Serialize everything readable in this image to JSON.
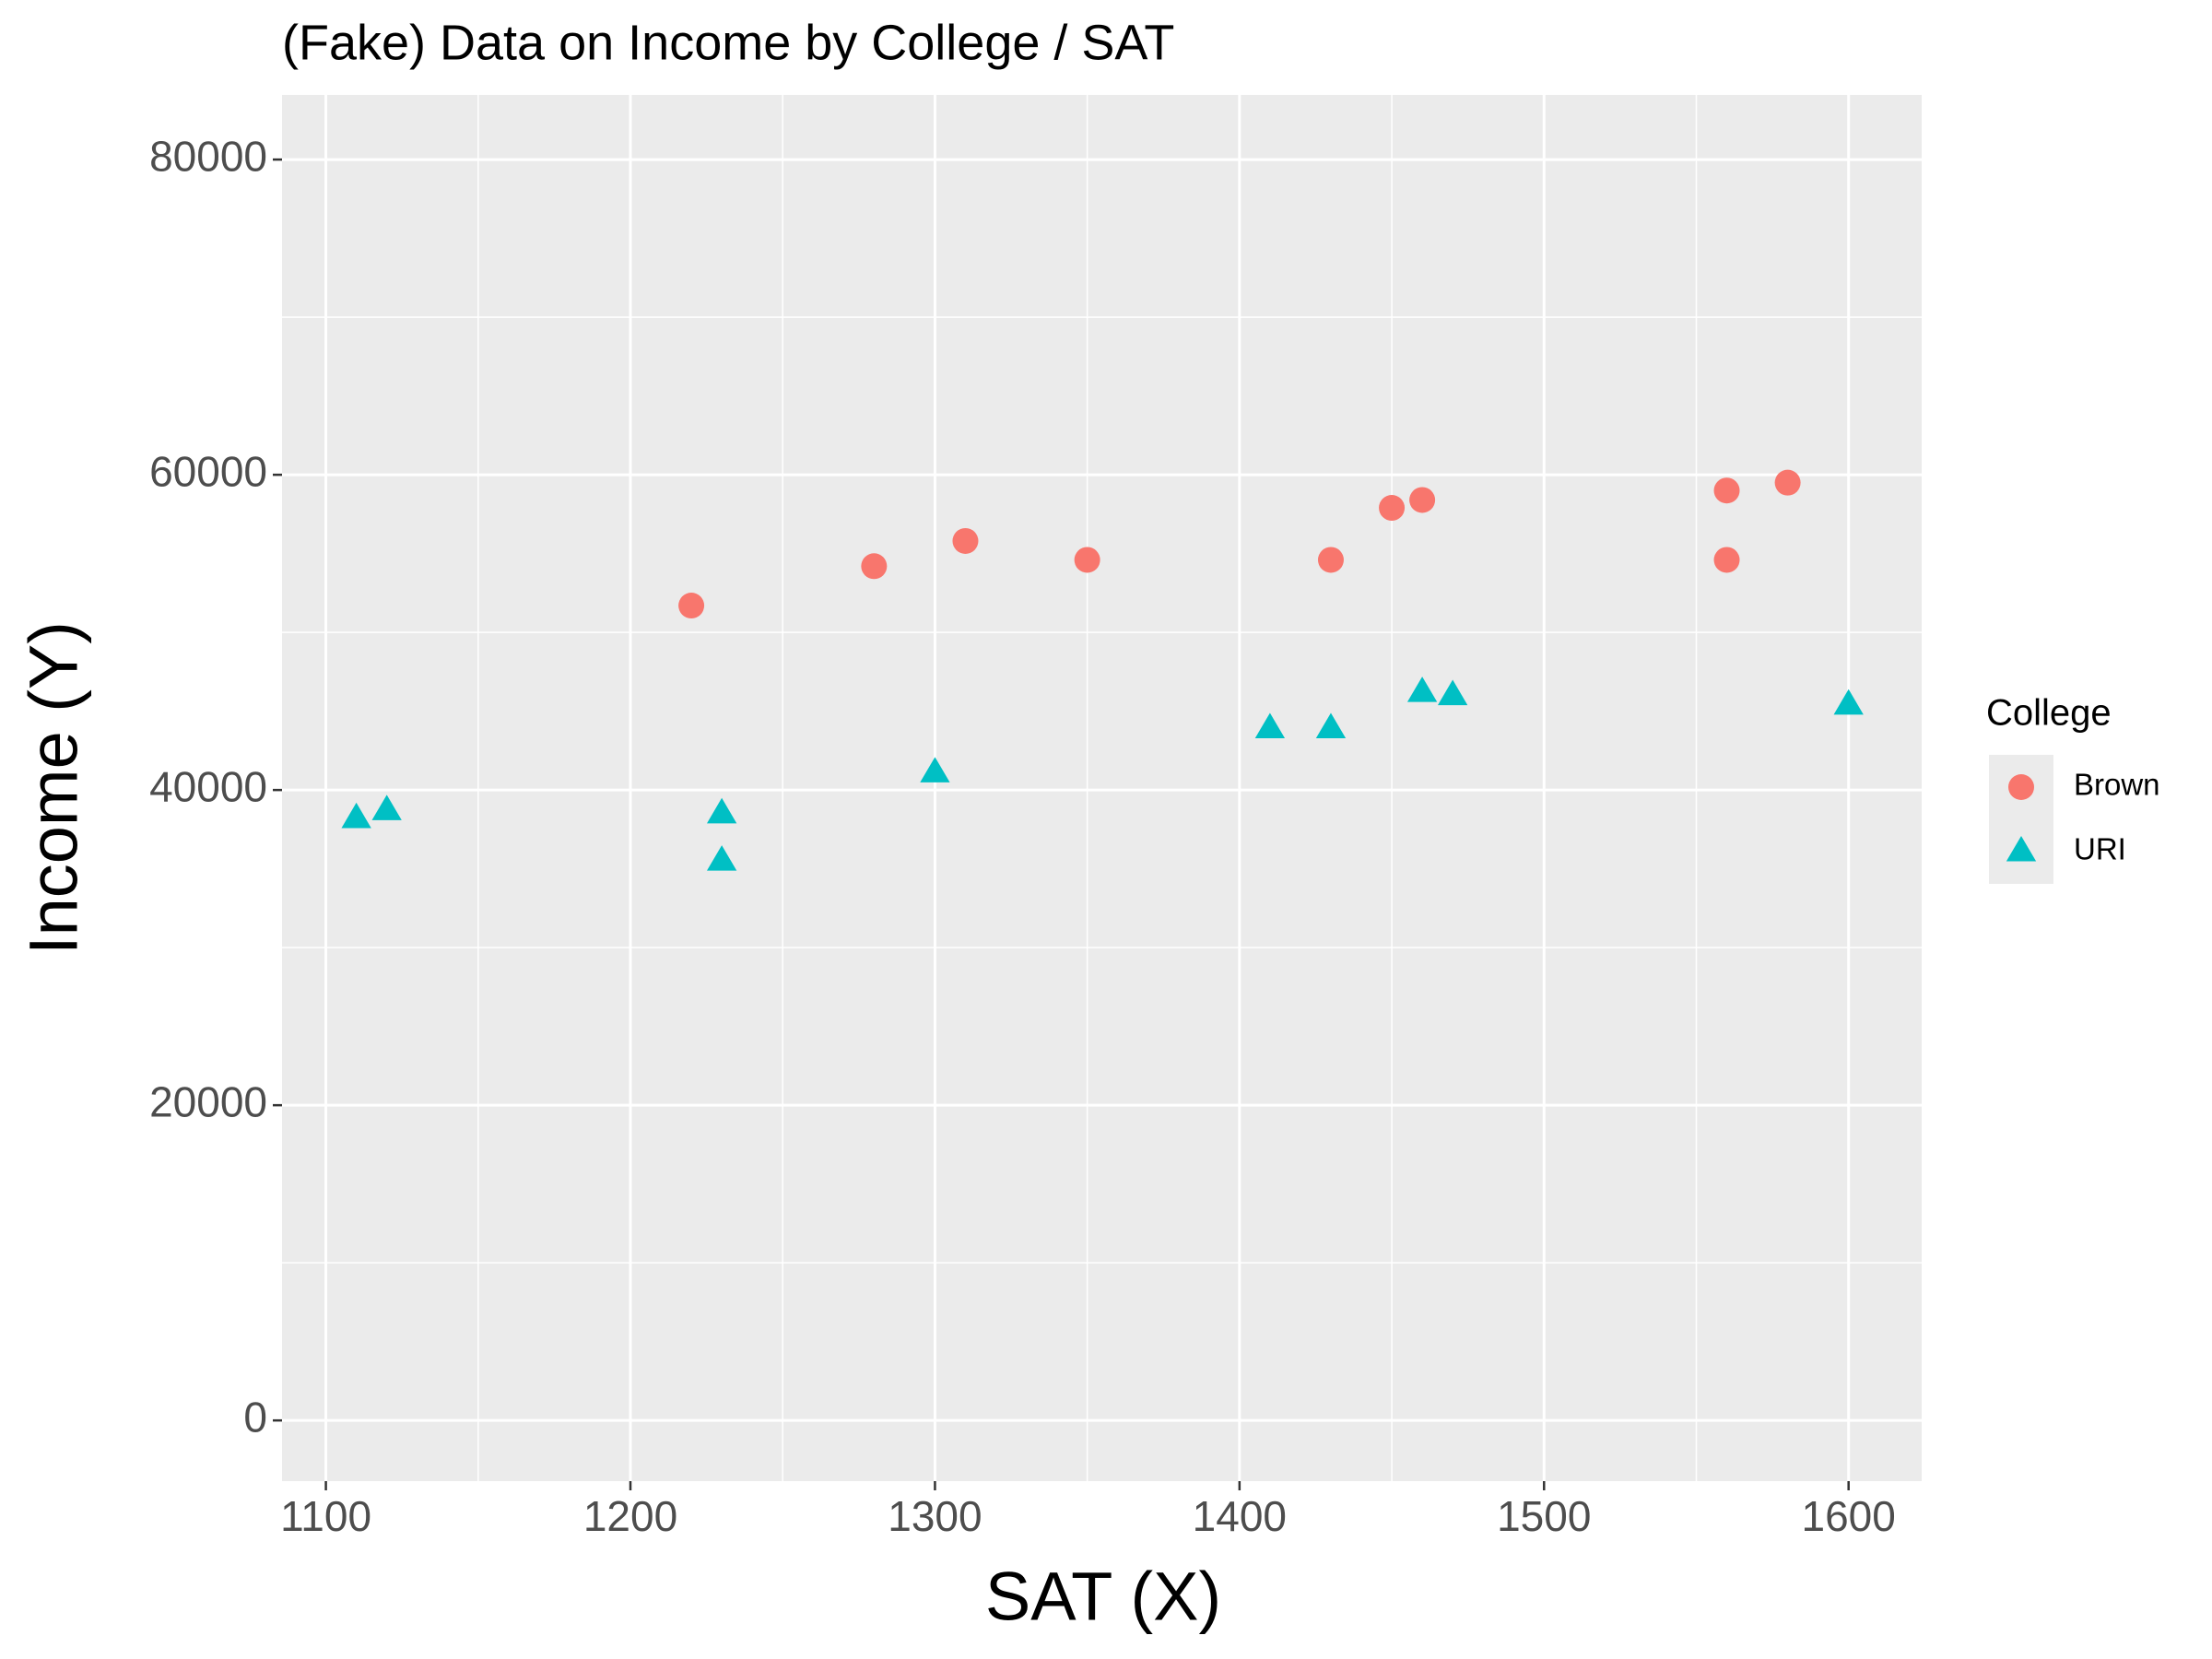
{
  "chart_data": {
    "type": "scatter",
    "title": "(Fake) Data on Income by College / SAT",
    "x_label": "SAT (X)",
    "y_label": "Income (Y)",
    "legend_title": "College",
    "legend_position": "right",
    "xlim": [
      1085.6,
      1624
    ],
    "xticks": [
      1100,
      1200,
      1300,
      1400,
      1500,
      1600
    ],
    "ylim": [
      -3850,
      84100
    ],
    "yticks": [
      0,
      20000,
      40000,
      60000,
      80000
    ],
    "grid": true,
    "series": [
      {
        "name": "Brown",
        "color": "#F8766D",
        "shape": "circle",
        "x": [
          1220,
          1280,
          1310,
          1350,
          1430,
          1450,
          1460,
          1560,
          1560,
          1580
        ],
        "values": [
          51700,
          54200,
          55800,
          54600,
          54600,
          57900,
          58400,
          59000,
          54600,
          59500
        ]
      },
      {
        "name": "URI",
        "color": "#00BFC4",
        "shape": "triangle",
        "x": [
          1110,
          1120,
          1230,
          1230,
          1300,
          1410,
          1430,
          1460,
          1470,
          1600
        ],
        "values": [
          38200,
          38700,
          38500,
          35500,
          41100,
          43900,
          43900,
          46200,
          46000,
          45400
        ]
      }
    ]
  }
}
